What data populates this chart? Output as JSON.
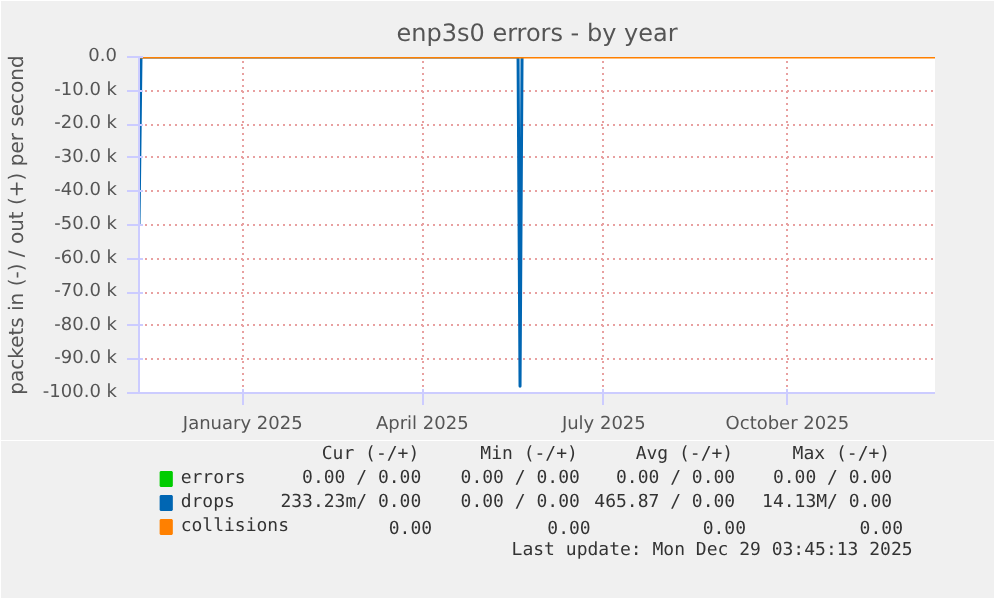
{
  "chart_data": {
    "type": "line",
    "title": "enp3s0 errors - by year",
    "ylabel": "packets in (-) / out (+) per second",
    "xlim": [
      "2024-11-25",
      "2025-12-29"
    ],
    "ylim": [
      -100000,
      0
    ],
    "xticks": [
      {
        "value": "2025-01-16",
        "label": "January 2025"
      },
      {
        "value": "2025-04-16",
        "label": "April 2025"
      },
      {
        "value": "2025-07-16",
        "label": "July 2025"
      },
      {
        "value": "2025-10-16",
        "label": "October 2025"
      }
    ],
    "yticks": [
      {
        "value": 0,
        "label": "0.0"
      },
      {
        "value": -10000,
        "label": "-10.0 k"
      },
      {
        "value": -20000,
        "label": "-20.0 k"
      },
      {
        "value": -30000,
        "label": "-30.0 k"
      },
      {
        "value": -40000,
        "label": "-40.0 k"
      },
      {
        "value": -50000,
        "label": "-50.0 k"
      },
      {
        "value": -60000,
        "label": "-60.0 k"
      },
      {
        "value": -70000,
        "label": "-70.0 k"
      },
      {
        "value": -80000,
        "label": "-80.0 k"
      },
      {
        "value": -90000,
        "label": "-90.0 k"
      },
      {
        "value": -100000,
        "label": "-100.0 k"
      }
    ],
    "grid": true,
    "legend": "bottom",
    "line_style": "solid",
    "series": [
      {
        "name": "errors",
        "color": "#00cc00"
      },
      {
        "name": "drops",
        "color": "#0066b3",
        "x": [
          "2024-11-25",
          "2024-11-26",
          "2025-06-03",
          "2025-06-04",
          "2025-06-05"
        ],
        "values": [
          -50000,
          0,
          0,
          -98000,
          0
        ]
      },
      {
        "name": "collisions",
        "color": "#ff8000",
        "x": [
          "2024-11-25",
          "2025-12-29"
        ],
        "values": [
          0,
          0
        ]
      }
    ],
    "annotations": [
      "Cur (-/+)",
      "Min (-/+)",
      "Avg (-/+)",
      "Max (-/+)",
      "0.00 /  0.00",
      "0.00 /  0.00",
      "0.00 /  0.00",
      "0.00 /  0.00",
      "233.23m/  0.00",
      "0.00 /  0.00",
      "465.87 /  0.00",
      "14.13M/  0.00",
      "0.00",
      "0.00",
      "0.00",
      "0.00",
      "Last update: Mon Dec 29 03:45:13 2025"
    ]
  }
}
